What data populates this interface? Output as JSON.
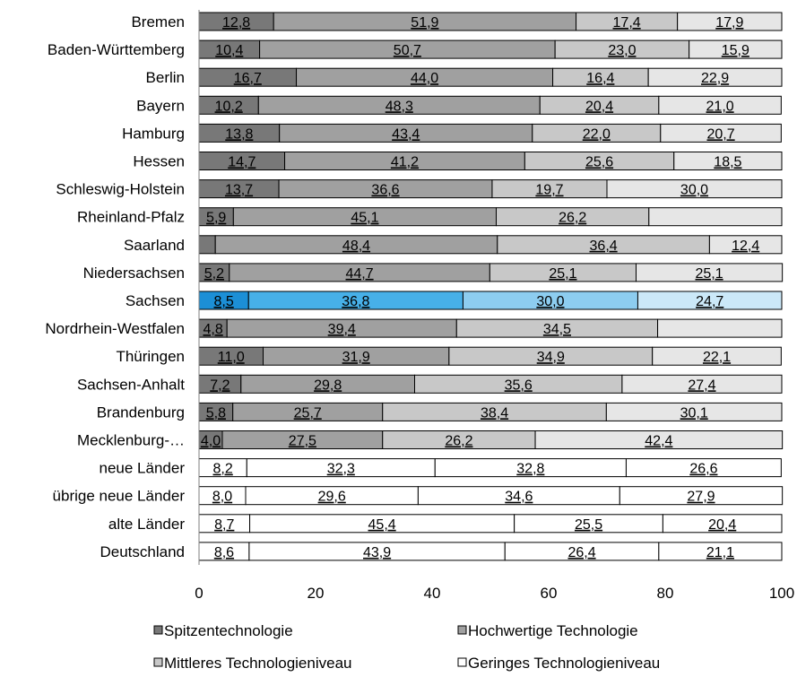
{
  "chart_data": {
    "type": "bar",
    "orientation": "horizontal",
    "stacked": true,
    "categories": [
      "Bremen",
      "Baden-Württemberg",
      "Berlin",
      "Bayern",
      "Hamburg",
      "Hessen",
      "Schleswig-Holstein",
      "Rheinland-Pfalz",
      "Saarland",
      "Niedersachsen",
      "Sachsen",
      "Nordrhein-Westfalen",
      "Thüringen",
      "Sachsen-Anhalt",
      "Brandenburg",
      "Mecklenburg-…",
      "neue Länder",
      "übrige neue Länder",
      "alte Länder",
      "Deutschland"
    ],
    "series": [
      {
        "name": "Spitzentechnologie",
        "values": [
          12.8,
          10.4,
          16.7,
          10.2,
          13.8,
          14.7,
          13.7,
          5.9,
          2.8,
          5.2,
          8.5,
          4.8,
          11.0,
          7.2,
          5.8,
          4.0,
          8.2,
          8.0,
          8.7,
          8.6
        ]
      },
      {
        "name": "Hochwertige Technologie",
        "values": [
          51.9,
          50.7,
          44.0,
          48.3,
          43.4,
          41.2,
          36.6,
          45.1,
          48.4,
          44.7,
          36.8,
          39.4,
          31.9,
          29.8,
          25.7,
          27.5,
          32.3,
          29.6,
          45.4,
          43.9
        ]
      },
      {
        "name": "Mittleres Technologieniveau",
        "values": [
          17.4,
          23.0,
          16.4,
          20.4,
          22.0,
          25.6,
          19.7,
          26.2,
          36.4,
          25.1,
          30.0,
          34.5,
          34.9,
          35.6,
          38.4,
          26.2,
          32.8,
          34.6,
          25.5,
          26.4
        ]
      },
      {
        "name": "Geringes Technologieniveau",
        "values": [
          17.9,
          15.9,
          22.9,
          21.0,
          20.7,
          18.5,
          30.0,
          22.8,
          12.4,
          25.1,
          24.7,
          21.3,
          22.1,
          27.4,
          30.1,
          42.4,
          26.6,
          27.9,
          20.4,
          21.1
        ]
      }
    ],
    "value_labels": [
      [
        "12,8",
        "51,9",
        "17,4",
        "17,9"
      ],
      [
        "10,4",
        "50,7",
        "23,0",
        "15,9"
      ],
      [
        "16,7",
        "44,0",
        "16,4",
        "22,9"
      ],
      [
        "10,2",
        "48,3",
        "20,4",
        "21,0"
      ],
      [
        "13,8",
        "43,4",
        "22,0",
        "20,7"
      ],
      [
        "14,7",
        "41,2",
        "25,6",
        "18,5"
      ],
      [
        "13,7",
        "36,6",
        "19,7",
        "30,0"
      ],
      [
        "5,9",
        "45,1",
        "26,2",
        ""
      ],
      [
        "",
        "48,4",
        "36,4",
        "12,4"
      ],
      [
        "5,2",
        "44,7",
        "25,1",
        "25,1"
      ],
      [
        "8,5",
        "36,8",
        "30,0",
        "24,7"
      ],
      [
        "4,8",
        "39,4",
        "34,5",
        ""
      ],
      [
        "11,0",
        "31,9",
        "34,9",
        "22,1"
      ],
      [
        "7,2",
        "29,8",
        "35,6",
        "27,4"
      ],
      [
        "5,8",
        "25,7",
        "38,4",
        "30,1"
      ],
      [
        "4,0",
        "27,5",
        "26,2",
        "42,4"
      ],
      [
        "8,2",
        "32,3",
        "32,8",
        "26,6"
      ],
      [
        "8,0",
        "29,6",
        "34,6",
        "27,9"
      ],
      [
        "8,7",
        "45,4",
        "25,5",
        "20,4"
      ],
      [
        "8,6",
        "43,9",
        "26,4",
        "21,1"
      ]
    ],
    "xlim": [
      0,
      100
    ],
    "xticks": [
      "0",
      "20",
      "40",
      "60",
      "80",
      "100"
    ],
    "legend": {
      "position": "bottom",
      "columns": 2
    },
    "colors": {
      "gray": [
        "#787878",
        "#a0a0a0",
        "#c8c8c8",
        "#e6e6e6"
      ],
      "highlight": [
        "#1c8fd6",
        "#47b0e8",
        "#8dcdf0",
        "#cbe8f8"
      ],
      "aggregate": [
        "#ffffff",
        "#ffffff",
        "#ffffff",
        "#ffffff"
      ]
    },
    "row_styles": [
      "gray",
      "gray",
      "gray",
      "gray",
      "gray",
      "gray",
      "gray",
      "gray",
      "gray",
      "gray",
      "highlight",
      "gray",
      "gray",
      "gray",
      "gray",
      "gray",
      "aggregate",
      "aggregate",
      "aggregate",
      "aggregate"
    ],
    "legend_colors": [
      "#787878",
      "#a0a0a0",
      "#c8c8c8",
      "#ffffff"
    ]
  }
}
